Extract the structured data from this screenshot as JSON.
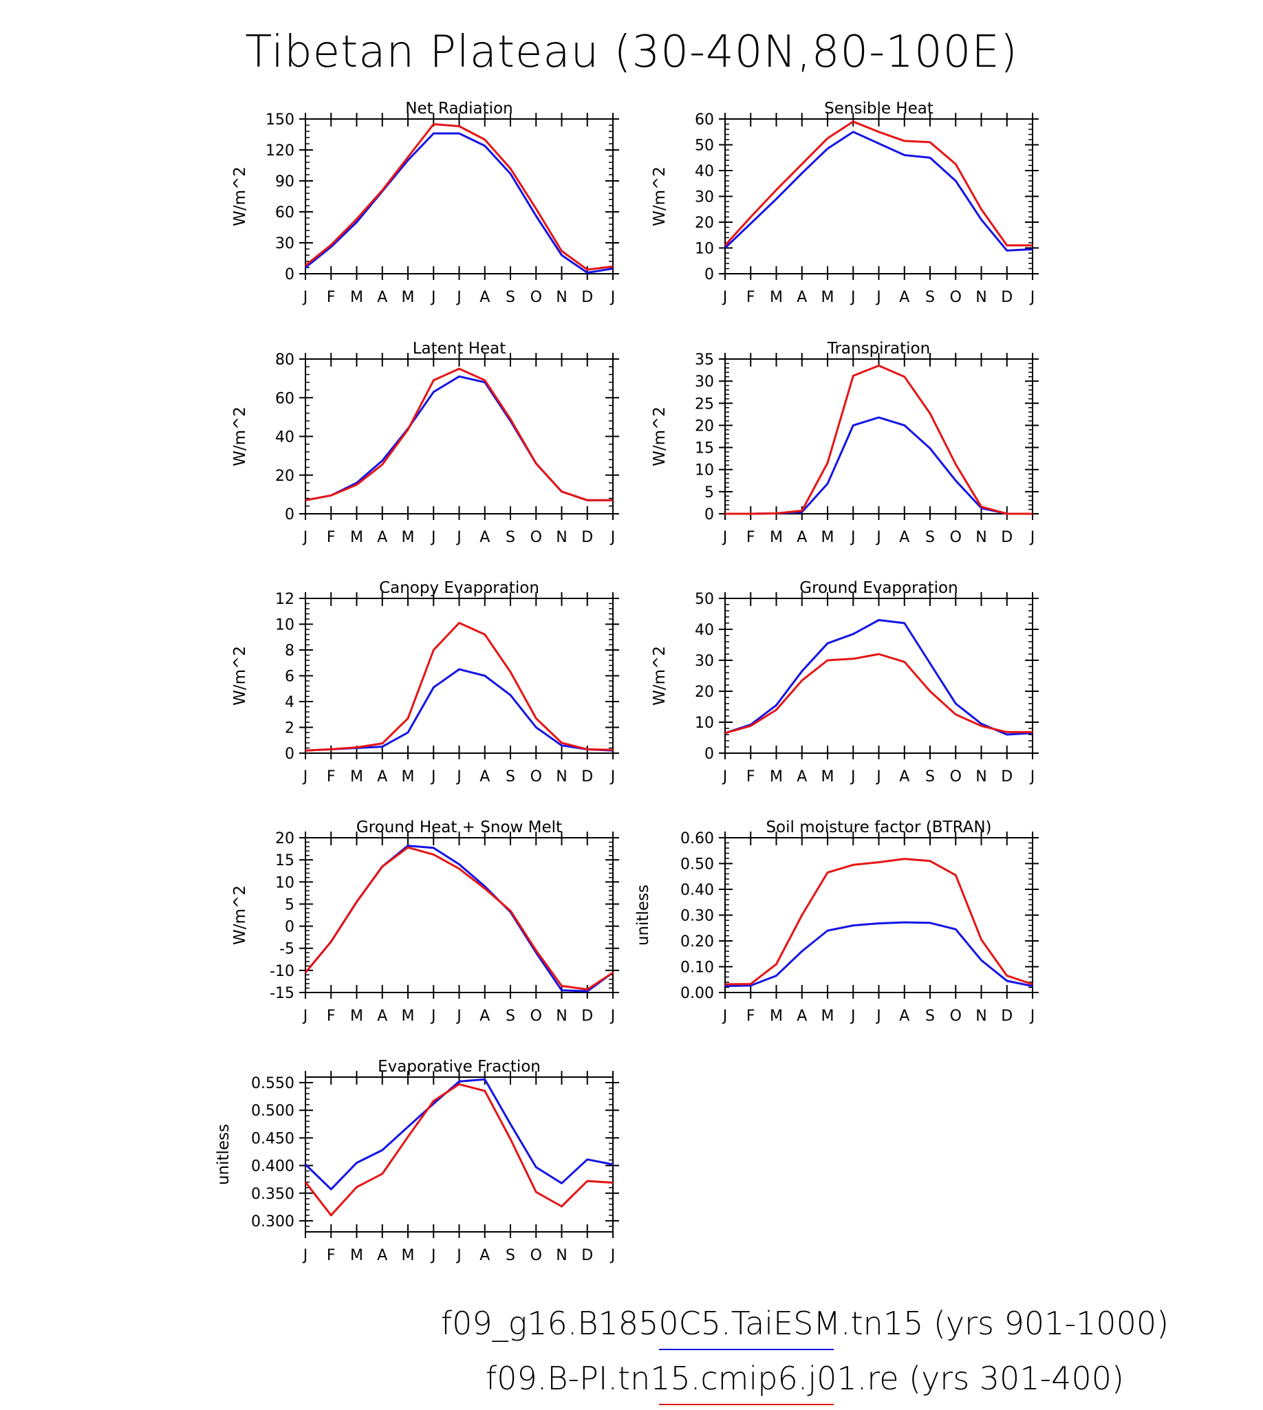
{
  "title": "Tibetan Plateau (30-40N,80-100E)",
  "colors": {
    "case1": "#1414e6",
    "case2": "#e61414"
  },
  "legend": [
    {
      "label": "f09_g16.B1850C5.TaiESM.tn15 (yrs 901-1000)",
      "color": "#1414e6"
    },
    {
      "label": "f09.B-PI.tn15.cmip6.j01.re (yrs 301-400)",
      "color": "#e61414"
    }
  ],
  "chart_data": [
    {
      "type": "line",
      "title": "Net Radiation",
      "ylabel": "W/m^2",
      "categories": [
        "J",
        "F",
        "M",
        "A",
        "M",
        "J",
        "J",
        "A",
        "S",
        "O",
        "N",
        "D",
        "J"
      ],
      "ylim": [
        0,
        150
      ],
      "yticks": [
        0,
        30,
        60,
        90,
        120,
        150
      ],
      "yticklabels": [
        "0",
        "30",
        "60",
        "90",
        "120",
        "150"
      ],
      "series": [
        {
          "color": "#1414e6",
          "values": [
            6,
            26,
            50,
            80,
            110,
            136,
            136,
            124,
            97,
            56,
            18,
            1,
            5
          ]
        },
        {
          "color": "#e61414",
          "values": [
            8,
            28,
            53,
            81,
            113,
            145,
            143,
            130,
            102,
            63,
            22,
            4,
            7
          ]
        }
      ]
    },
    {
      "type": "line",
      "title": "Sensible Heat",
      "ylabel": "W/m^2",
      "categories": [
        "J",
        "F",
        "M",
        "A",
        "M",
        "J",
        "J",
        "A",
        "S",
        "O",
        "N",
        "D",
        "J"
      ],
      "ylim": [
        0,
        60
      ],
      "yticks": [
        0,
        10,
        20,
        30,
        40,
        50,
        60
      ],
      "yticklabels": [
        "0",
        "10",
        "20",
        "30",
        "40",
        "50",
        "60"
      ],
      "series": [
        {
          "color": "#1414e6",
          "values": [
            10,
            19.5,
            29,
            39,
            48.5,
            55,
            50.5,
            46,
            45,
            36,
            21,
            9,
            9.5
          ]
        },
        {
          "color": "#e61414",
          "values": [
            11,
            22,
            32.5,
            42.5,
            52.5,
            59,
            55,
            51.5,
            51,
            42.5,
            25,
            11,
            11
          ]
        }
      ]
    },
    {
      "type": "line",
      "title": "Latent Heat",
      "ylabel": "W/m^2",
      "categories": [
        "J",
        "F",
        "M",
        "A",
        "M",
        "J",
        "J",
        "A",
        "S",
        "O",
        "N",
        "D",
        "J"
      ],
      "ylim": [
        0,
        80
      ],
      "yticks": [
        0,
        20,
        40,
        60,
        80
      ],
      "yticklabels": [
        "0",
        "20",
        "40",
        "60",
        "80"
      ],
      "series": [
        {
          "color": "#1414e6",
          "values": [
            7,
            9.5,
            16,
            27.5,
            44,
            63,
            71,
            68,
            48,
            26,
            11.5,
            7,
            7
          ]
        },
        {
          "color": "#e61414",
          "values": [
            7,
            9.5,
            15,
            25.5,
            43.5,
            69,
            75,
            69,
            49,
            26,
            11.5,
            7,
            7
          ]
        }
      ]
    },
    {
      "type": "line",
      "title": "Transpiration",
      "ylabel": "W/m^2",
      "categories": [
        "J",
        "F",
        "M",
        "A",
        "M",
        "J",
        "J",
        "A",
        "S",
        "O",
        "N",
        "D",
        "J"
      ],
      "ylim": [
        0,
        35
      ],
      "yticks": [
        0,
        5,
        10,
        15,
        20,
        25,
        30,
        35
      ],
      "yticklabels": [
        "0",
        "5",
        "10",
        "15",
        "20",
        "25",
        "30",
        "35"
      ],
      "series": [
        {
          "color": "#1414e6",
          "values": [
            0,
            0,
            0.1,
            0.4,
            6.8,
            20,
            21.8,
            20,
            14.8,
            7.5,
            1.3,
            0,
            0
          ]
        },
        {
          "color": "#e61414",
          "values": [
            0,
            0,
            0.1,
            0.7,
            11.5,
            31.2,
            33.5,
            31,
            22.7,
            11.2,
            1.6,
            0,
            0
          ]
        }
      ]
    },
    {
      "type": "line",
      "title": "Canopy Evaporation",
      "ylabel": "W/m^2",
      "categories": [
        "J",
        "F",
        "M",
        "A",
        "M",
        "J",
        "J",
        "A",
        "S",
        "O",
        "N",
        "D",
        "J"
      ],
      "ylim": [
        0,
        12
      ],
      "yticks": [
        0,
        2,
        4,
        6,
        8,
        10,
        12
      ],
      "yticklabels": [
        "0",
        "2",
        "4",
        "6",
        "8",
        "10",
        "12"
      ],
      "series": [
        {
          "color": "#1414e6",
          "values": [
            0.2,
            0.3,
            0.4,
            0.5,
            1.6,
            5.1,
            6.5,
            6.0,
            4.5,
            2.0,
            0.6,
            0.3,
            0.2
          ]
        },
        {
          "color": "#e61414",
          "values": [
            0.2,
            0.3,
            0.45,
            0.75,
            2.7,
            8.0,
            10.1,
            9.2,
            6.3,
            2.7,
            0.8,
            0.3,
            0.25
          ]
        }
      ]
    },
    {
      "type": "line",
      "title": "Ground Evaporation",
      "ylabel": "W/m^2",
      "categories": [
        "J",
        "F",
        "M",
        "A",
        "M",
        "J",
        "J",
        "A",
        "S",
        "O",
        "N",
        "D",
        "J"
      ],
      "ylim": [
        0,
        50
      ],
      "yticks": [
        0,
        10,
        20,
        30,
        40,
        50
      ],
      "yticklabels": [
        "0",
        "10",
        "20",
        "30",
        "40",
        "50"
      ],
      "series": [
        {
          "color": "#1414e6",
          "values": [
            6.5,
            9.2,
            15.5,
            26.5,
            35.5,
            38.5,
            43,
            42,
            29,
            16,
            9.5,
            6,
            6.5
          ]
        },
        {
          "color": "#e61414",
          "values": [
            6.5,
            8.8,
            14,
            23.5,
            30,
            30.5,
            32,
            29.5,
            20,
            12.5,
            8.8,
            6.8,
            6.8
          ]
        }
      ]
    },
    {
      "type": "line",
      "title": "Ground Heat + Snow Melt",
      "ylabel": "W/m^2",
      "categories": [
        "J",
        "F",
        "M",
        "A",
        "M",
        "J",
        "J",
        "A",
        "S",
        "O",
        "N",
        "D",
        "J"
      ],
      "ylim": [
        -15,
        20
      ],
      "yticks": [
        -15,
        -10,
        -5,
        0,
        5,
        10,
        15,
        20
      ],
      "yticklabels": [
        "-15",
        "-10",
        "-5",
        "0",
        "5",
        "10",
        "15",
        "20"
      ],
      "series": [
        {
          "color": "#1414e6",
          "values": [
            -10.5,
            -3.5,
            5.5,
            13.5,
            18.2,
            17.7,
            14,
            9,
            3.2,
            -6,
            -14.5,
            -14.7,
            -10.5
          ]
        },
        {
          "color": "#e61414",
          "values": [
            -10.5,
            -3.5,
            5.5,
            13.5,
            17.8,
            16.2,
            13,
            8.5,
            3.5,
            -5.5,
            -13.5,
            -14.3,
            -10.5
          ]
        }
      ]
    },
    {
      "type": "line",
      "title": "Soil moisture factor (BTRAN)",
      "ylabel": "unitless",
      "categories": [
        "J",
        "F",
        "M",
        "A",
        "M",
        "J",
        "J",
        "A",
        "S",
        "O",
        "N",
        "D",
        "J"
      ],
      "ylim": [
        0,
        0.6
      ],
      "yticks": [
        0,
        0.1,
        0.2,
        0.3,
        0.4,
        0.5,
        0.6
      ],
      "yticklabels": [
        "0.00",
        "0.10",
        "0.20",
        "0.30",
        "0.40",
        "0.50",
        "0.60"
      ],
      "series": [
        {
          "color": "#1414e6",
          "values": [
            0.025,
            0.027,
            0.065,
            0.16,
            0.24,
            0.26,
            0.268,
            0.272,
            0.27,
            0.245,
            0.125,
            0.045,
            0.025
          ]
        },
        {
          "color": "#e61414",
          "values": [
            0.032,
            0.033,
            0.11,
            0.3,
            0.465,
            0.495,
            0.505,
            0.518,
            0.51,
            0.455,
            0.205,
            0.065,
            0.032
          ]
        }
      ]
    },
    {
      "type": "line",
      "title": "Evaporative Fraction",
      "ylabel": "unitless",
      "categories": [
        "J",
        "F",
        "M",
        "A",
        "M",
        "J",
        "J",
        "A",
        "S",
        "O",
        "N",
        "D",
        "J"
      ],
      "ylim": [
        0.28,
        0.56
      ],
      "yticks": [
        0.3,
        0.35,
        0.4,
        0.45,
        0.5,
        0.55
      ],
      "yticklabels": [
        "0.300",
        "0.350",
        "0.400",
        "0.450",
        "0.500",
        "0.550"
      ],
      "series": [
        {
          "color": "#1414e6",
          "values": [
            0.402,
            0.357,
            0.405,
            0.428,
            0.47,
            0.512,
            0.552,
            0.556,
            0.475,
            0.397,
            0.368,
            0.411,
            0.402
          ]
        },
        {
          "color": "#e61414",
          "values": [
            0.37,
            0.31,
            0.361,
            0.385,
            0.452,
            0.517,
            0.547,
            0.535,
            0.448,
            0.352,
            0.326,
            0.372,
            0.369
          ]
        }
      ]
    }
  ]
}
